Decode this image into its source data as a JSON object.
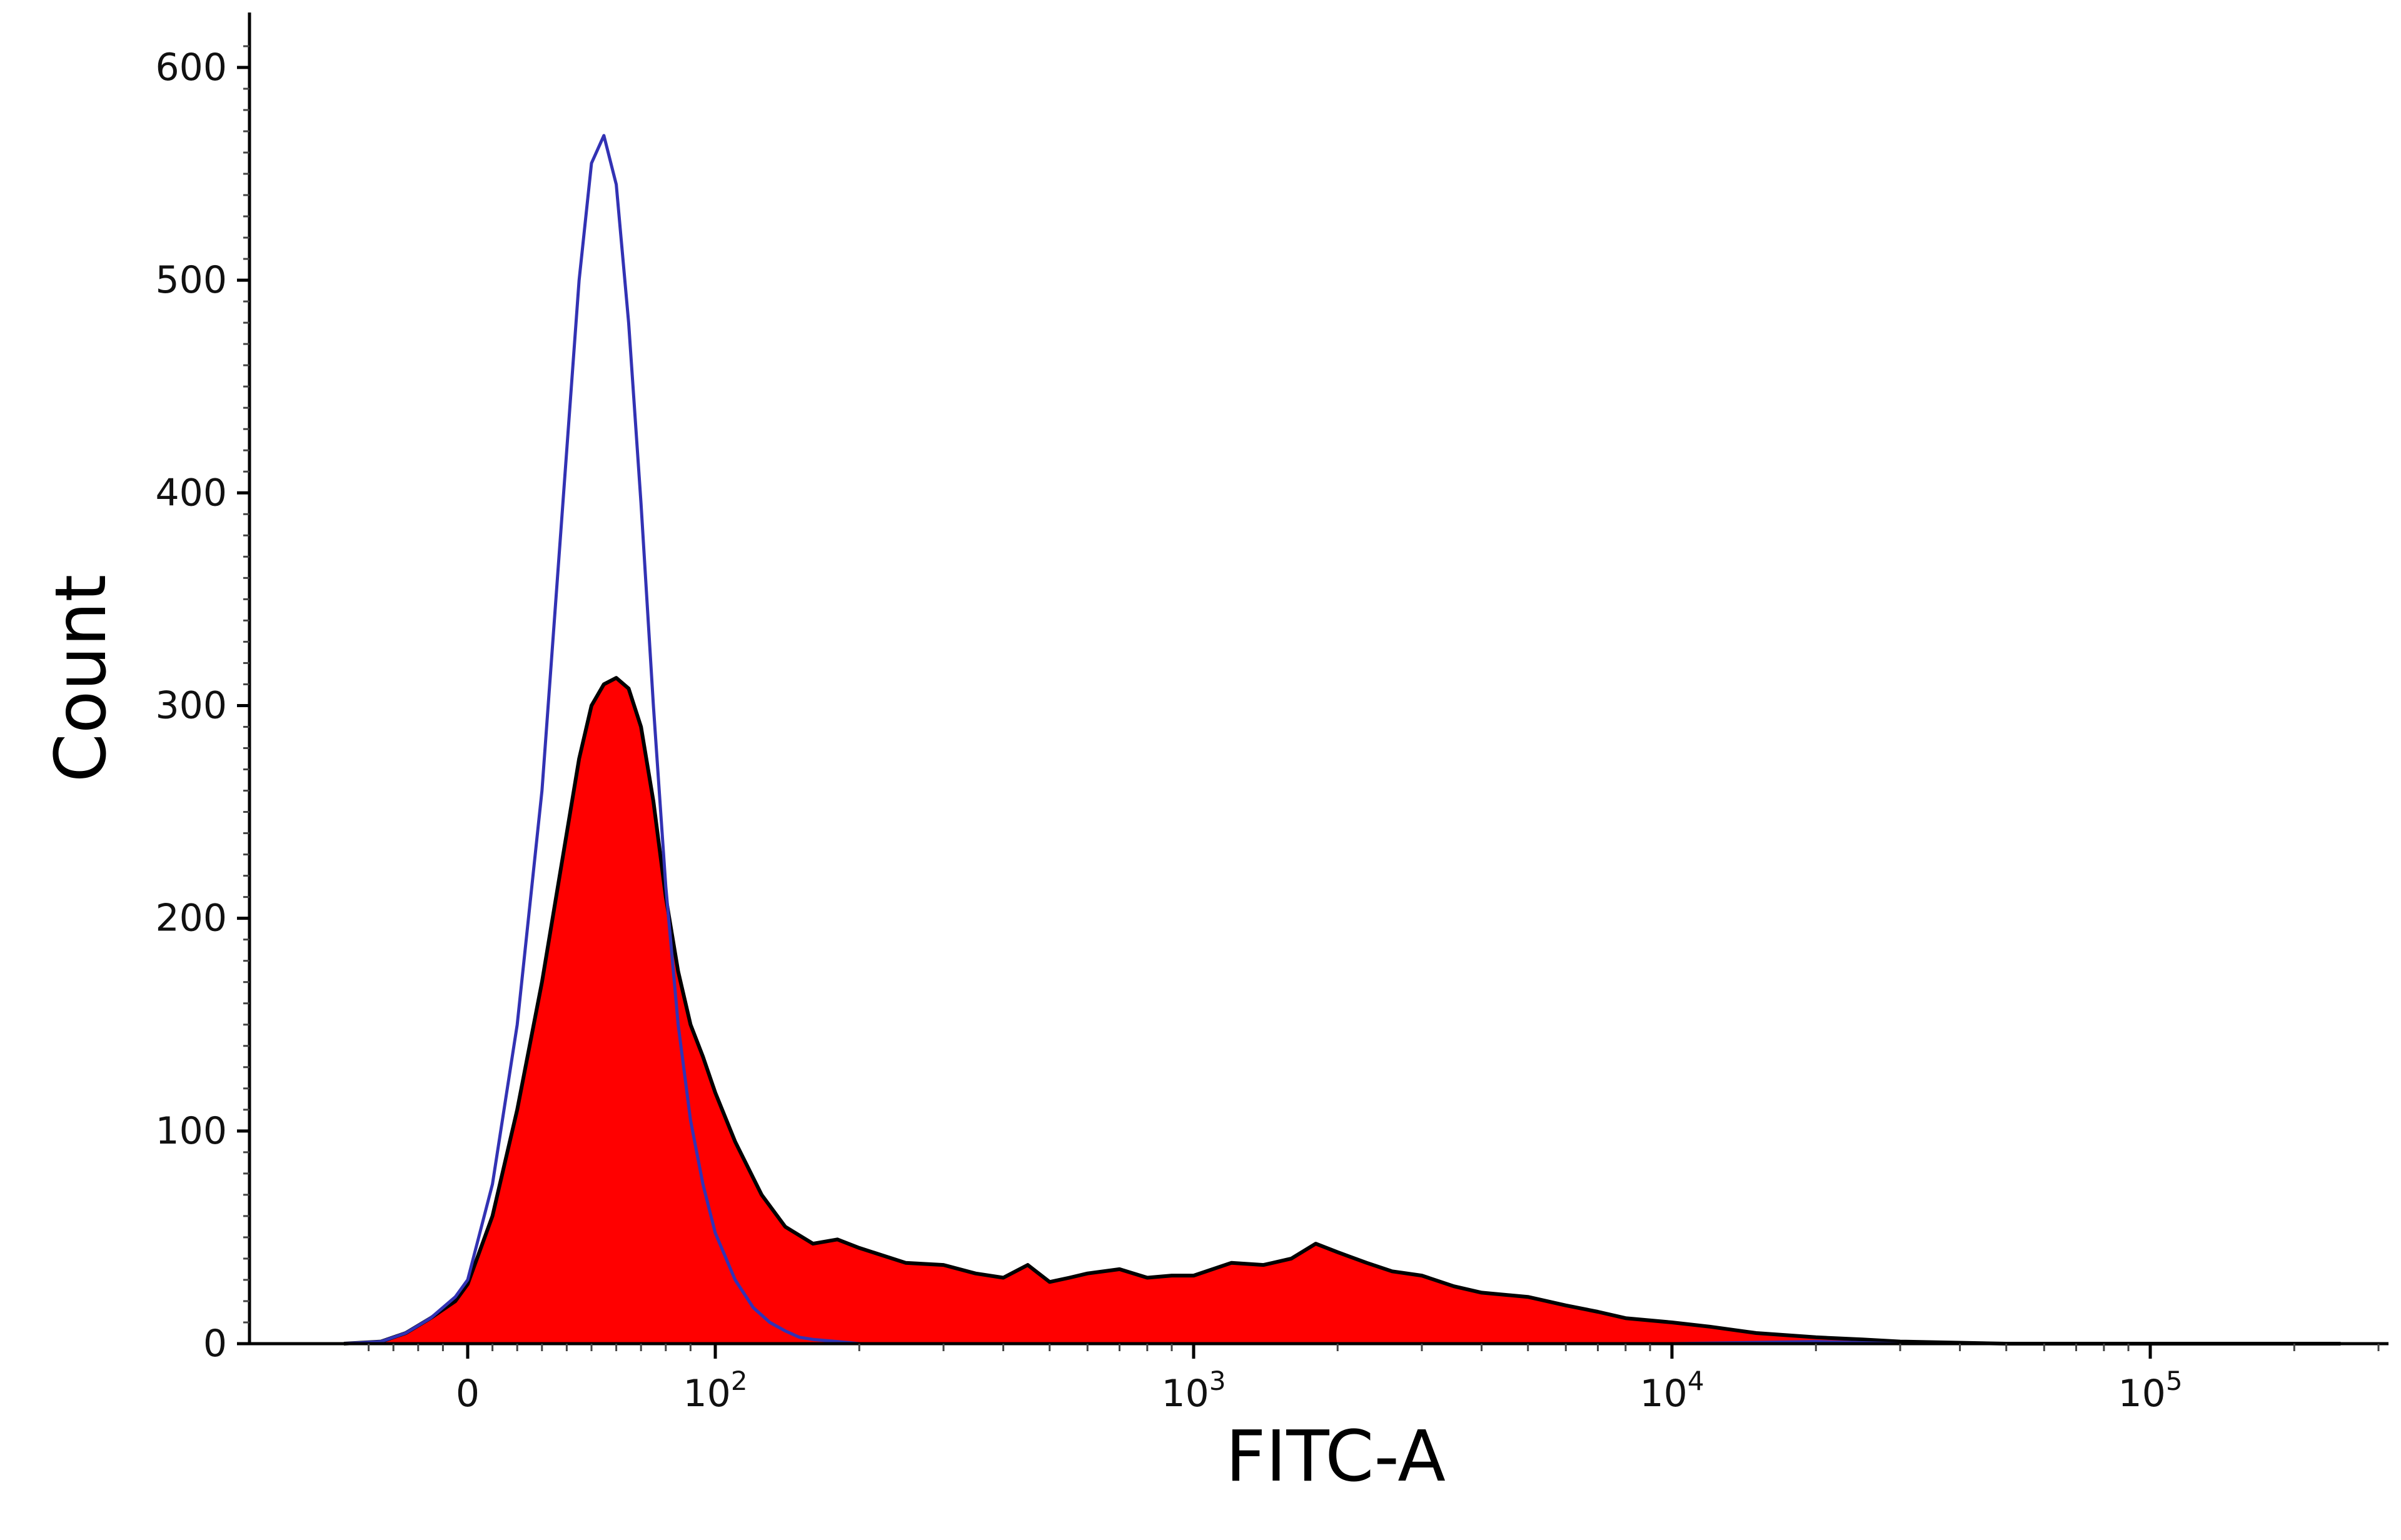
{
  "chart_data": {
    "type": "area",
    "title": "",
    "xlabel": "FITC-A",
    "ylabel": "Count",
    "x_scale": "biexponential",
    "xlim": [
      -50,
      250000
    ],
    "ylim": [
      0,
      620
    ],
    "y_ticks": [
      "0",
      "100",
      "200",
      "300",
      "400",
      "500",
      "600"
    ],
    "x_ticks": [
      {
        "value": 0,
        "base": "0",
        "exp": ""
      },
      {
        "value": 100,
        "base": "10",
        "exp": "2"
      },
      {
        "value": 1000,
        "base": "10",
        "exp": "3"
      },
      {
        "value": 10000,
        "base": "10",
        "exp": "4"
      },
      {
        "value": 100000,
        "base": "10",
        "exp": "5"
      }
    ],
    "grid": false,
    "series": [
      {
        "style": "filled",
        "color": "#ff0000",
        "edge_color": "#000000",
        "x": [
          -50,
          -35,
          -25,
          -15,
          -5,
          0,
          10,
          20,
          30,
          40,
          45,
          50,
          55,
          60,
          65,
          70,
          75,
          80,
          85,
          90,
          95,
          100,
          110,
          125,
          140,
          160,
          180,
          200,
          250,
          300,
          350,
          400,
          450,
          500,
          550,
          600,
          700,
          800,
          900,
          1000,
          1200,
          1400,
          1600,
          1800,
          2000,
          2300,
          2600,
          3000,
          3500,
          4000,
          5000,
          6000,
          7000,
          8000,
          10000,
          12000,
          15000,
          20000,
          25000,
          30000,
          50000,
          100000,
          250000
        ],
        "y": [
          0,
          1,
          5,
          12,
          20,
          28,
          60,
          110,
          170,
          240,
          275,
          300,
          310,
          313,
          308,
          290,
          255,
          210,
          175,
          150,
          135,
          118,
          95,
          70,
          55,
          47,
          49,
          45,
          38,
          37,
          33,
          31,
          37,
          29,
          31,
          33,
          35,
          31,
          32,
          32,
          38,
          37,
          40,
          47,
          43,
          38,
          34,
          32,
          27,
          24,
          22,
          18,
          15,
          12,
          10,
          8,
          5,
          3,
          2,
          1,
          0,
          0,
          0
        ]
      },
      {
        "style": "outline",
        "color": "#3232b4",
        "x": [
          -50,
          -35,
          -25,
          -15,
          -5,
          0,
          10,
          20,
          30,
          40,
          45,
          50,
          55,
          60,
          65,
          70,
          75,
          80,
          85,
          90,
          95,
          100,
          110,
          120,
          130,
          140,
          150,
          160,
          180,
          200,
          300,
          1000,
          10000,
          20000,
          30000,
          100000,
          250000
        ],
        "y": [
          0,
          1,
          5,
          12,
          22,
          30,
          75,
          150,
          260,
          420,
          500,
          555,
          568,
          545,
          480,
          395,
          300,
          215,
          150,
          105,
          75,
          52,
          30,
          17,
          10,
          6,
          3,
          2,
          1,
          0,
          0,
          0,
          0,
          1,
          0,
          0,
          0
        ]
      }
    ]
  }
}
